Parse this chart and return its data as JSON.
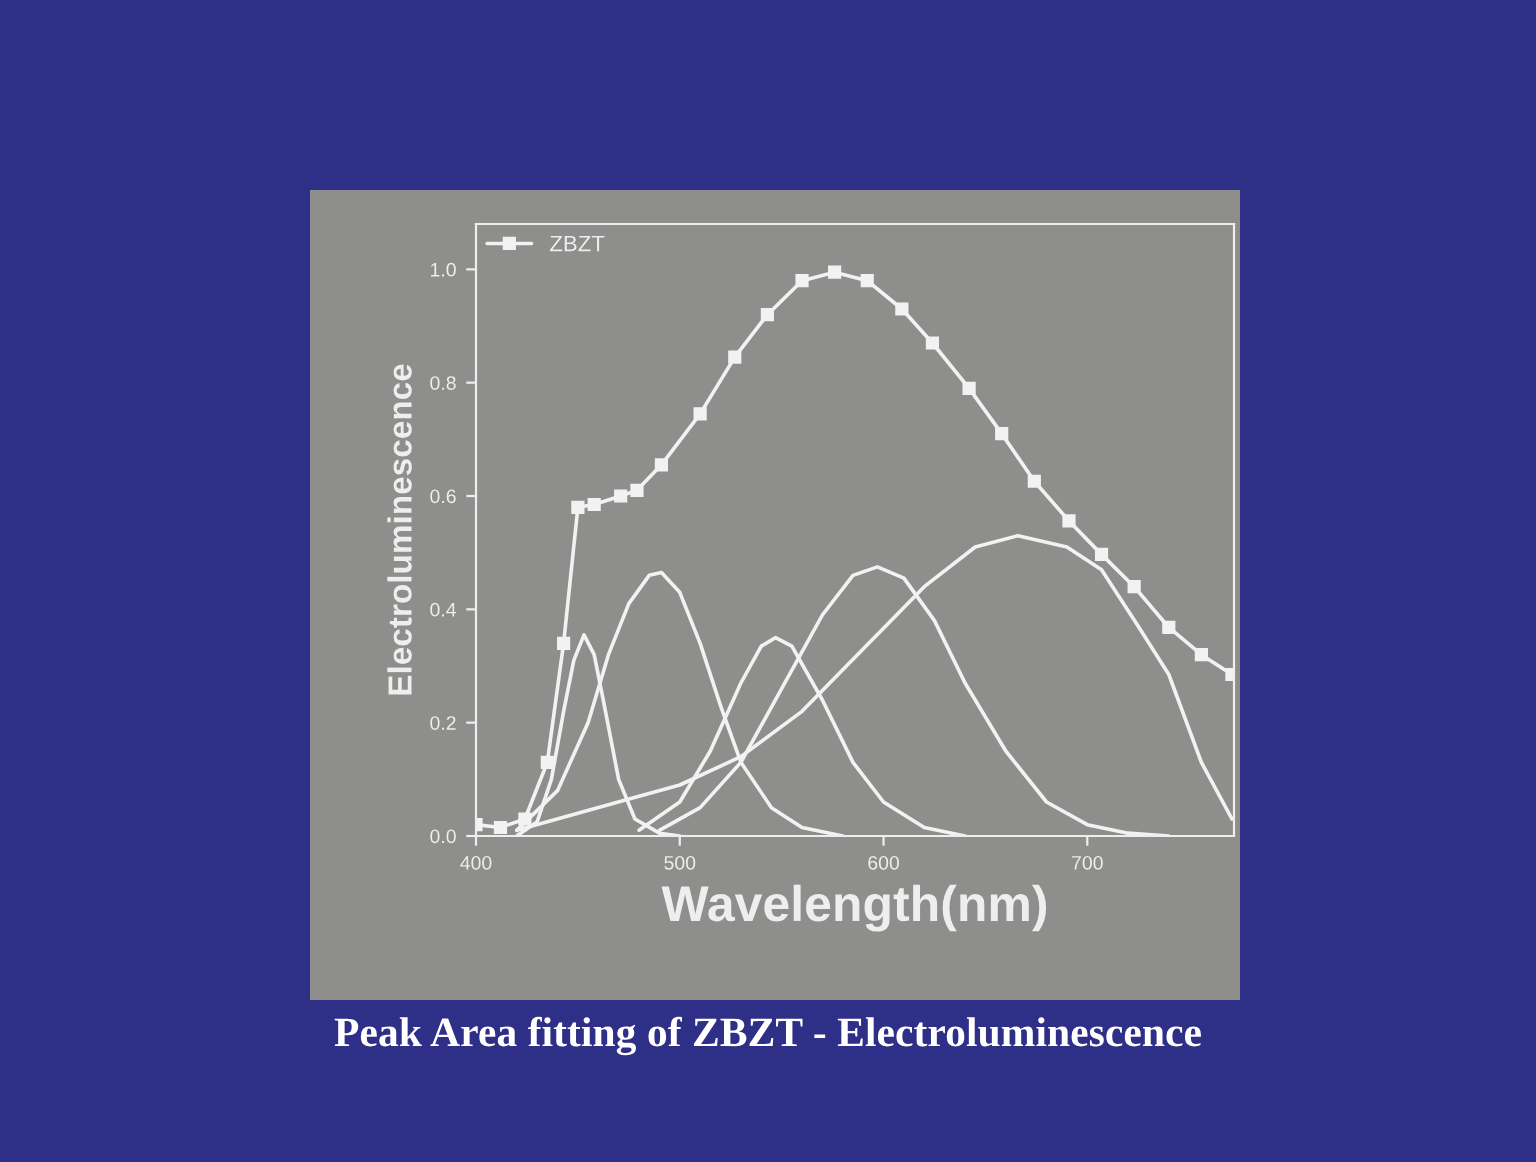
{
  "chart_data": {
    "type": "line",
    "title": "Peak Area fitting of ZBZT - Electroluminescence",
    "xlabel": "Wavelength(nm)",
    "ylabel": "Electroluminescence",
    "xlim": [
      400,
      772
    ],
    "xticks": [
      400,
      500,
      600,
      700
    ],
    "ylim": [
      0,
      1.08
    ],
    "yticks": [
      {
        "value": 0,
        "label": "0.0"
      },
      {
        "value": 0.2,
        "label": "0.2"
      },
      {
        "value": 0.4,
        "label": "0.4"
      },
      {
        "value": 0.6,
        "label": "0.6"
      },
      {
        "value": 0.8,
        "label": "0.8"
      },
      {
        "value": 1.0,
        "label": "1.0"
      }
    ],
    "grid": false,
    "legend": "top left",
    "series": [
      {
        "name": "ZBZT",
        "color": "#f2f2f2",
        "marker": "square",
        "x": [
          400,
          412,
          424,
          435,
          443,
          450,
          458,
          471,
          479,
          491,
          510,
          527,
          543,
          560,
          576,
          592,
          609,
          624,
          642,
          658,
          674,
          691,
          707,
          723,
          740,
          756,
          771
        ],
        "values": [
          0.02,
          0.015,
          0.03,
          0.13,
          0.34,
          0.58,
          0.585,
          0.6,
          0.61,
          0.655,
          0.745,
          0.845,
          0.92,
          0.98,
          0.995,
          0.98,
          0.93,
          0.87,
          0.79,
          0.71,
          0.626,
          0.556,
          0.497,
          0.44,
          0.368,
          0.32,
          0.285
        ]
      },
      {
        "color": "#f2f2f2",
        "marker": "none",
        "x": [
          420,
          430,
          437,
          443,
          448,
          453,
          458,
          463,
          470,
          478,
          490,
          500
        ],
        "values": [
          0.0,
          0.025,
          0.1,
          0.22,
          0.31,
          0.355,
          0.32,
          0.23,
          0.1,
          0.03,
          0.005,
          0.0
        ]
      },
      {
        "color": "#f2f2f2",
        "marker": "none",
        "x": [
          420,
          440,
          455,
          465,
          475,
          485,
          491,
          500,
          510,
          520,
          530,
          545,
          560,
          580
        ],
        "values": [
          0.01,
          0.08,
          0.2,
          0.32,
          0.41,
          0.46,
          0.465,
          0.43,
          0.34,
          0.23,
          0.13,
          0.05,
          0.015,
          0.0
        ]
      },
      {
        "color": "#f2f2f2",
        "marker": "none",
        "x": [
          480,
          500,
          515,
          530,
          540,
          547,
          555,
          570,
          585,
          600,
          620,
          640
        ],
        "values": [
          0.01,
          0.06,
          0.15,
          0.27,
          0.335,
          0.35,
          0.335,
          0.24,
          0.13,
          0.06,
          0.015,
          0.0
        ]
      },
      {
        "color": "#f2f2f2",
        "marker": "none",
        "x": [
          490,
          510,
          530,
          550,
          570,
          585,
          597,
          610,
          625,
          640,
          660,
          680,
          700,
          720,
          740
        ],
        "values": [
          0.01,
          0.05,
          0.13,
          0.26,
          0.39,
          0.46,
          0.475,
          0.455,
          0.38,
          0.27,
          0.15,
          0.06,
          0.02,
          0.005,
          0.0
        ]
      },
      {
        "color": "#f2f2f2",
        "marker": "none",
        "x": [
          420,
          450,
          480,
          500,
          530,
          560,
          590,
          620,
          645,
          666,
          690,
          707,
          725,
          740,
          756,
          771
        ],
        "values": [
          0.01,
          0.04,
          0.07,
          0.09,
          0.14,
          0.22,
          0.33,
          0.44,
          0.51,
          0.53,
          0.51,
          0.47,
          0.37,
          0.285,
          0.13,
          0.03
        ]
      }
    ]
  }
}
